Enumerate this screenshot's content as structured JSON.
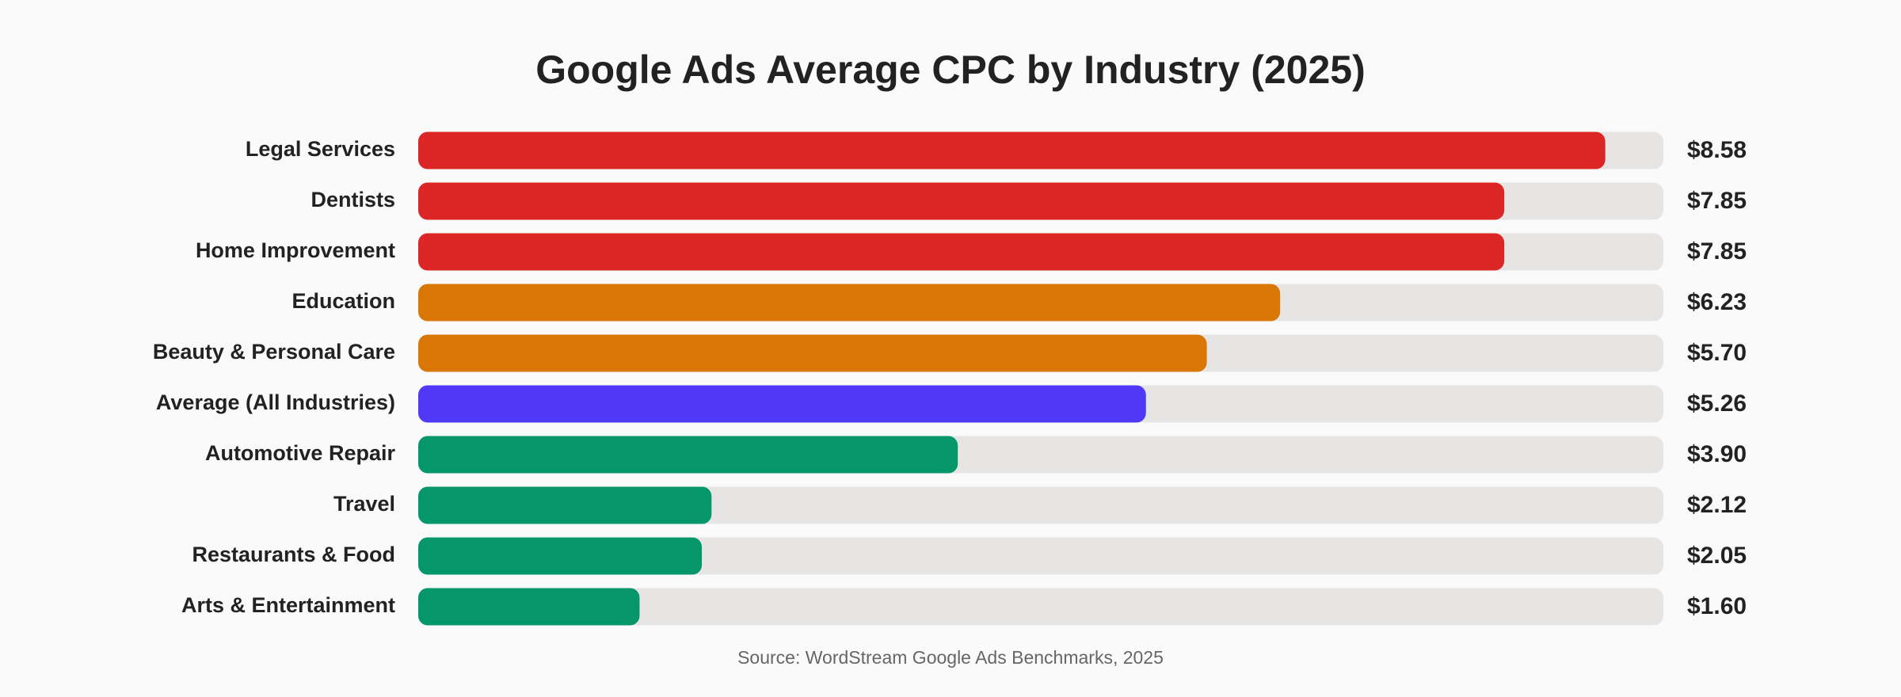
{
  "chart_data": {
    "type": "bar",
    "orientation": "horizontal",
    "title": "Google Ads Average CPC by Industry (2025)",
    "categories": [
      "Legal Services",
      "Dentists",
      "Home Improvement",
      "Education",
      "Beauty & Personal Care",
      "Average (All Industries)",
      "Automotive Repair",
      "Travel",
      "Restaurants & Food",
      "Arts & Entertainment"
    ],
    "values": [
      8.58,
      7.85,
      7.85,
      6.23,
      5.7,
      5.26,
      3.9,
      2.12,
      2.05,
      1.6
    ],
    "value_labels": [
      "$8.58",
      "$7.85",
      "$7.85",
      "$6.23",
      "$5.70",
      "$5.26",
      "$3.90",
      "$2.12",
      "$2.05",
      "$1.60"
    ],
    "colors": [
      "#dc2626",
      "#dc2626",
      "#dc2626",
      "#d97706",
      "#d97706",
      "#4f39f6",
      "#059669",
      "#059669",
      "#059669",
      "#059669"
    ],
    "xlim": [
      0,
      9
    ],
    "source": "Source: WordStream Google Ads Benchmarks, 2025"
  }
}
